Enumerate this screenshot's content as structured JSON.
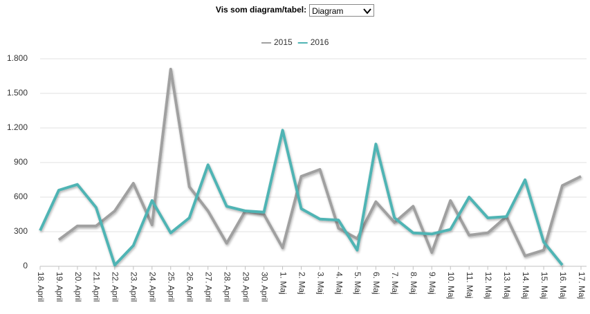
{
  "controls": {
    "label": "Vis som diagram/tabel:",
    "select_value": "Diagram"
  },
  "chart_data": {
    "type": "line",
    "categories": [
      "18. April",
      "19. April",
      "20. April",
      "21. April",
      "22. April",
      "23. April",
      "24. April",
      "25. April",
      "26. April",
      "27. April",
      "28. April",
      "29. April",
      "30. April",
      "1. Maj",
      "2. Maj",
      "3. Maj",
      "4. Maj",
      "5. Maj",
      "6. Maj",
      "7. Maj",
      "8. Maj",
      "9. Maj",
      "10. Maj",
      "11. Maj",
      "12. Maj",
      "13. Maj",
      "14. Maj",
      "15. Maj",
      "16. Maj",
      "17. Maj"
    ],
    "series": [
      {
        "name": "2015",
        "color": "#a0a0a0",
        "values": [
          null,
          230,
          350,
          350,
          480,
          720,
          360,
          1710,
          690,
          480,
          200,
          480,
          450,
          160,
          780,
          840,
          330,
          240,
          560,
          380,
          520,
          120,
          570,
          270,
          290,
          430,
          90,
          140,
          700,
          780
        ]
      },
      {
        "name": "2016",
        "color": "#4fb4b4",
        "values": [
          310,
          660,
          710,
          510,
          10,
          180,
          570,
          290,
          420,
          880,
          520,
          480,
          470,
          1180,
          500,
          410,
          400,
          140,
          1060,
          420,
          290,
          280,
          320,
          600,
          420,
          430,
          750,
          210,
          10,
          null
        ]
      }
    ],
    "ylim": [
      0,
      1800
    ],
    "yticks": [
      0,
      300,
      600,
      900,
      {
        "value": 1200,
        "label": "1.200"
      },
      {
        "value": 1500,
        "label": "1.500"
      },
      {
        "value": 1800,
        "label": "1.800"
      }
    ],
    "grid": true,
    "legend": "top"
  }
}
